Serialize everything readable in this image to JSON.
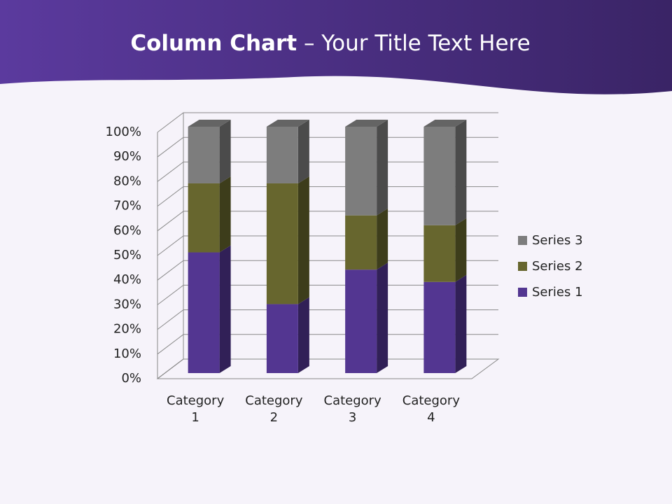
{
  "chart_data": {
    "type": "stacked_bar_3d",
    "title": {
      "bold": "Column Chart",
      "rest": "– Your Title Text Here"
    },
    "categories": [
      "Category 1",
      "Category 2",
      "Category 3",
      "Category 4"
    ],
    "series": [
      {
        "name": "Series 1",
        "color": "#533691",
        "values": [
          49,
          28,
          42,
          37
        ]
      },
      {
        "name": "Series 2",
        "color": "#67662e",
        "values": [
          28,
          49,
          22,
          23
        ]
      },
      {
        "name": "Series 3",
        "color": "#7d7d7d",
        "values": [
          23,
          23,
          36,
          40
        ]
      }
    ],
    "ylim": [
      0,
      100
    ],
    "yticks": [
      {
        "value": 0,
        "label": "0%"
      },
      {
        "value": 10,
        "label": "10%"
      },
      {
        "value": 20,
        "label": "20%"
      },
      {
        "value": 30,
        "label": "30%"
      },
      {
        "value": 40,
        "label": "40%"
      },
      {
        "value": 50,
        "label": "50%"
      },
      {
        "value": 60,
        "label": "60%"
      },
      {
        "value": 70,
        "label": "70%"
      },
      {
        "value": 80,
        "label": "80%"
      },
      {
        "value": 90,
        "label": "90%"
      },
      {
        "value": 100,
        "label": "100%"
      }
    ],
    "grid": true,
    "legend": "right"
  }
}
